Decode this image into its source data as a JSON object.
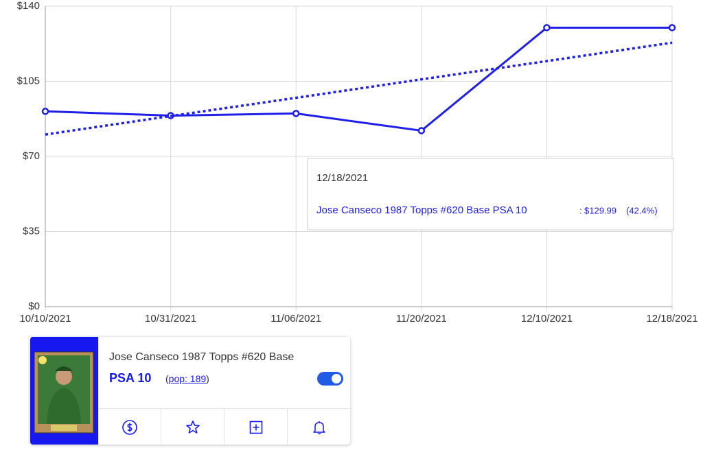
{
  "chart_data": {
    "type": "line",
    "categories": [
      "10/10/2021",
      "10/31/2021",
      "11/06/2021",
      "11/20/2021",
      "12/10/2021",
      "12/18/2021"
    ],
    "series": [
      {
        "name": "Jose Canseco 1987 Topps #620 Base PSA 10",
        "color": "#1f1fe8",
        "style": "solid",
        "markers": true,
        "values": [
          91,
          89,
          90,
          82,
          129.99,
          129.99
        ]
      },
      {
        "color": "#1f1fe8",
        "style": "dotted",
        "values": [
          80.2,
          88.8,
          97.3,
          105.9,
          114.4,
          123
        ]
      }
    ],
    "ylim": [
      0,
      140
    ],
    "yticks": [
      {
        "value": 0,
        "label": "$0"
      },
      {
        "value": 35,
        "label": "$35"
      },
      {
        "value": 70,
        "label": "$70"
      },
      {
        "value": 105,
        "label": "$105"
      },
      {
        "value": 140,
        "label": "$140"
      }
    ],
    "grid": true,
    "tooltip": {
      "date": "12/18/2021",
      "separator": ":",
      "value_label": "$129.99",
      "change": "(42.4%)"
    }
  },
  "card": {
    "title": "Jose Canseco 1987 Topps #620 Base",
    "grade": "PSA 10",
    "pop": "pop: 189",
    "pop_open": "(",
    "pop_close": ")"
  }
}
